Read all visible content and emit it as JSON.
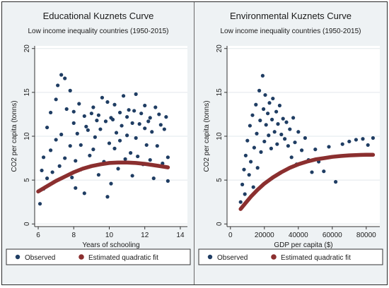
{
  "chart_data": [
    {
      "type": "scatter",
      "title": "Educational Kuznets Curve",
      "subtitle": "Low income inequality countries (1950-2015)",
      "xlabel": "Years of schooling",
      "ylabel": "CO2 per capita (tonns)",
      "xlim": [
        5.8,
        14.4
      ],
      "ylim": [
        -0.3,
        20.3
      ],
      "xticks": [
        6,
        8,
        10,
        12,
        14
      ],
      "yticks": [
        0,
        5,
        10,
        15,
        20
      ],
      "grid": true,
      "legend_position": "bottom",
      "series": [
        {
          "name": "Observed",
          "marker": "dot",
          "color": "#1f3d63",
          "x": [
            6.1,
            6.2,
            6.3,
            6.3,
            6.5,
            6.5,
            6.7,
            6.7,
            6.8,
            7.0,
            7.0,
            7.1,
            7.2,
            7.3,
            7.3,
            7.5,
            7.5,
            7.6,
            7.8,
            7.8,
            7.9,
            8.0,
            8.0,
            8.1,
            8.1,
            8.2,
            8.3,
            8.4,
            8.4,
            8.6,
            8.6,
            8.7,
            8.8,
            8.9,
            9.0,
            9.1,
            9.1,
            9.2,
            9.3,
            9.4,
            9.4,
            9.5,
            9.6,
            9.7,
            9.8,
            9.9,
            9.9,
            10.0,
            10.1,
            10.1,
            10.2,
            10.3,
            10.3,
            10.4,
            10.5,
            10.6,
            10.6,
            10.7,
            10.8,
            10.9,
            11.0,
            11.0,
            11.1,
            11.2,
            11.3,
            11.3,
            11.4,
            11.5,
            11.5,
            11.6,
            11.7,
            11.8,
            11.9,
            12.0,
            12.0,
            12.1,
            12.2,
            12.3,
            12.3,
            12.4,
            12.5,
            12.6,
            12.7,
            12.8,
            12.9,
            13.0,
            13.1,
            13.2,
            13.3,
            13.3
          ],
          "y": [
            2.3,
            6.1,
            4.0,
            7.6,
            11.0,
            5.2,
            12.7,
            8.4,
            5.9,
            14.2,
            9.6,
            15.8,
            6.6,
            17.0,
            10.2,
            16.6,
            7.5,
            13.1,
            15.2,
            8.9,
            5.3,
            11.5,
            12.8,
            7.2,
            4.1,
            10.3,
            13.7,
            9.0,
            6.2,
            12.3,
            3.5,
            11.1,
            10.7,
            7.8,
            12.6,
            13.3,
            8.5,
            9.9,
            11.8,
            5.6,
            12.4,
            10.8,
            14.4,
            7.1,
            11.7,
            3.1,
            13.9,
            9.2,
            12.1,
            4.6,
            11.9,
            8.6,
            13.6,
            10.4,
            6.3,
            12.7,
            9.5,
            11.2,
            14.6,
            7.4,
            12.2,
            10.1,
            13.0,
            8.1,
            11.5,
            5.5,
            12.9,
            9.8,
            14.8,
            7.7,
            11.4,
            12.6,
            6.8,
            10.9,
            13.5,
            9.0,
            11.7,
            7.3,
            12.1,
            10.5,
            5.2,
            13.3,
            8.9,
            12.5,
            11.3,
            6.9,
            10.8,
            12.2,
            7.6,
            4.9
          ]
        },
        {
          "name": "Estimated quadratic fit",
          "marker": "thick-line",
          "color": "#8b2f2f",
          "x": [
            6.0,
            6.5,
            7.0,
            7.5,
            8.0,
            8.5,
            9.0,
            9.5,
            10.0,
            10.5,
            11.0,
            11.5,
            12.0,
            12.5,
            13.0,
            13.3
          ],
          "y": [
            3.7,
            4.3,
            4.9,
            5.4,
            5.9,
            6.3,
            6.6,
            6.8,
            6.95,
            7.0,
            7.0,
            6.95,
            6.85,
            6.7,
            6.55,
            6.45
          ]
        }
      ],
      "legend": [
        "Observed",
        "Estimated quadratic fit"
      ]
    },
    {
      "type": "scatter",
      "title": "Environmental Kuznets Curve",
      "subtitle": "Low income inequality countries (1950-2015)",
      "xlabel": "GDP per capita ($)",
      "ylabel": "CO2 per capita (tonns)",
      "xlim": [
        -2000,
        88000
      ],
      "ylim": [
        -0.3,
        20.3
      ],
      "xticks": [
        0,
        20000,
        40000,
        60000,
        80000
      ],
      "yticks": [
        0,
        5,
        10,
        15,
        20
      ],
      "grid": true,
      "legend_position": "bottom",
      "series": [
        {
          "name": "Observed",
          "marker": "dot",
          "color": "#1f3d63",
          "x": [
            6000,
            7000,
            8000,
            8500,
            9000,
            10000,
            11000,
            11500,
            12000,
            13000,
            13500,
            14000,
            15000,
            15500,
            16000,
            17000,
            17500,
            18000,
            19000,
            19500,
            20000,
            20500,
            21000,
            22000,
            22500,
            23000,
            24000,
            24500,
            25000,
            26000,
            27000,
            27500,
            28000,
            29000,
            30000,
            31000,
            32000,
            33000,
            34000,
            35000,
            36000,
            37000,
            38000,
            39000,
            40000,
            42000,
            44000,
            46000,
            48000,
            50000,
            52000,
            55000,
            58000,
            62000,
            66000,
            70000,
            74000,
            78000,
            81000,
            84000
          ],
          "y": [
            2.5,
            4.5,
            6.2,
            3.4,
            7.8,
            9.5,
            5.6,
            11.2,
            7.1,
            12.4,
            4.2,
            8.7,
            13.6,
            10.3,
            6.4,
            15.2,
            11.8,
            8.2,
            16.9,
            13.1,
            9.4,
            14.7,
            11.3,
            12.6,
            10.1,
            13.8,
            8.6,
            11.9,
            14.3,
            10.5,
            12.8,
            9.1,
            11.4,
            13.5,
            10.2,
            12.0,
            9.7,
            11.6,
            8.9,
            10.8,
            7.6,
            12.1,
            9.3,
            6.8,
            10.5,
            8.4,
            9.8,
            7.3,
            5.9,
            8.5,
            7.1,
            6.0,
            8.8,
            4.8,
            9.1,
            9.4,
            9.6,
            9.7,
            9.0,
            9.8
          ]
        },
        {
          "name": "Estimated quadratic fit",
          "marker": "thick-line",
          "color": "#8b2f2f",
          "x": [
            6000,
            9000,
            12000,
            16000,
            20000,
            25000,
            30000,
            35000,
            40000,
            45000,
            50000,
            55000,
            60000,
            65000,
            70000,
            75000,
            80000,
            84000
          ],
          "y": [
            1.7,
            2.4,
            3.1,
            3.9,
            4.6,
            5.3,
            5.9,
            6.4,
            6.8,
            7.1,
            7.35,
            7.5,
            7.65,
            7.75,
            7.82,
            7.86,
            7.88,
            7.88
          ]
        }
      ],
      "legend": [
        "Observed",
        "Estimated quadratic fit"
      ]
    }
  ]
}
